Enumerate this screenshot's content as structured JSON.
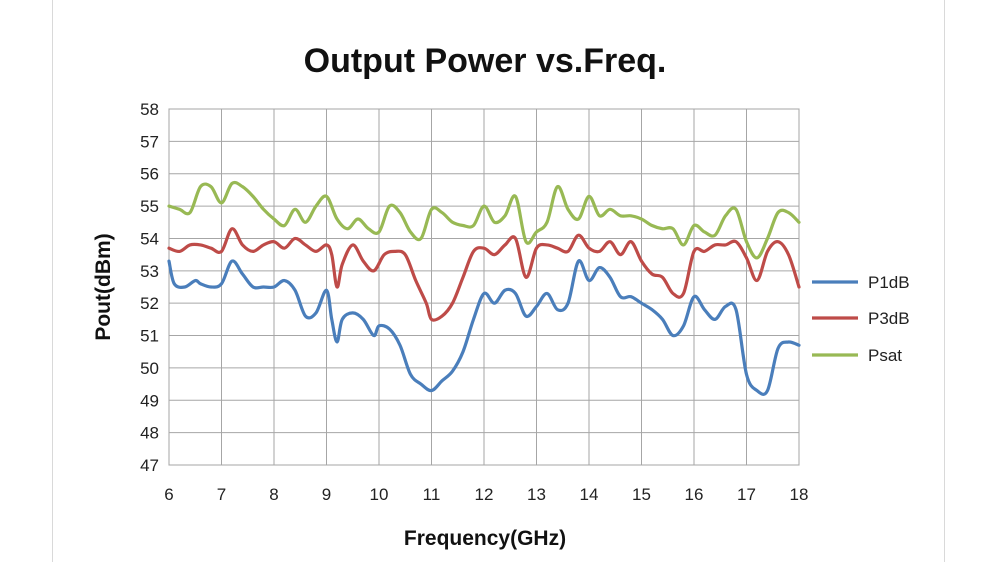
{
  "chart_data": {
    "type": "line",
    "title": "Output Power vs.Freq.",
    "xlabel": "Frequency(GHz)",
    "ylabel": "Pout(dBm)",
    "xlim": [
      6,
      18
    ],
    "ylim": [
      47,
      58
    ],
    "xticks": [
      6,
      7,
      8,
      9,
      10,
      11,
      12,
      13,
      14,
      15,
      16,
      17,
      18
    ],
    "yticks": [
      47,
      48,
      49,
      50,
      51,
      52,
      53,
      54,
      55,
      56,
      57,
      58
    ],
    "grid": true,
    "legend_position": "right",
    "series": [
      {
        "name": "P1dB",
        "color": "#4a7ebb",
        "x": [
          6.0,
          6.1,
          6.3,
          6.5,
          6.6,
          6.8,
          7.0,
          7.2,
          7.4,
          7.6,
          7.8,
          8.0,
          8.2,
          8.4,
          8.6,
          8.8,
          9.0,
          9.1,
          9.2,
          9.3,
          9.5,
          9.7,
          9.9,
          10.0,
          10.2,
          10.4,
          10.6,
          10.8,
          11.0,
          11.2,
          11.4,
          11.6,
          11.8,
          12.0,
          12.2,
          12.4,
          12.6,
          12.8,
          13.0,
          13.2,
          13.4,
          13.6,
          13.8,
          14.0,
          14.2,
          14.4,
          14.6,
          14.8,
          15.0,
          15.2,
          15.4,
          15.6,
          15.8,
          16.0,
          16.2,
          16.4,
          16.6,
          16.8,
          17.0,
          17.2,
          17.4,
          17.6,
          17.8,
          18.0
        ],
        "values": [
          53.3,
          52.6,
          52.5,
          52.7,
          52.6,
          52.5,
          52.6,
          53.3,
          52.9,
          52.5,
          52.5,
          52.5,
          52.7,
          52.4,
          51.6,
          51.7,
          52.4,
          51.5,
          50.8,
          51.5,
          51.7,
          51.5,
          51.0,
          51.3,
          51.2,
          50.7,
          49.8,
          49.5,
          49.3,
          49.6,
          49.9,
          50.5,
          51.5,
          52.3,
          52.0,
          52.4,
          52.3,
          51.6,
          51.9,
          52.3,
          51.8,
          52.0,
          53.3,
          52.7,
          53.1,
          52.8,
          52.2,
          52.2,
          52.0,
          51.8,
          51.5,
          51.0,
          51.3,
          52.2,
          51.8,
          51.5,
          51.9,
          51.8,
          49.8,
          49.3,
          49.3,
          50.6,
          50.8,
          50.7
        ]
      },
      {
        "name": "P3dB",
        "color": "#be4b48",
        "x": [
          6.0,
          6.2,
          6.4,
          6.6,
          6.8,
          7.0,
          7.2,
          7.4,
          7.6,
          7.8,
          8.0,
          8.2,
          8.4,
          8.6,
          8.8,
          9.0,
          9.1,
          9.2,
          9.3,
          9.5,
          9.7,
          9.9,
          10.1,
          10.3,
          10.5,
          10.7,
          10.9,
          11.0,
          11.2,
          11.4,
          11.6,
          11.8,
          12.0,
          12.2,
          12.4,
          12.6,
          12.8,
          13.0,
          13.2,
          13.4,
          13.6,
          13.8,
          14.0,
          14.2,
          14.4,
          14.6,
          14.8,
          15.0,
          15.2,
          15.4,
          15.6,
          15.8,
          16.0,
          16.2,
          16.4,
          16.6,
          16.8,
          17.0,
          17.2,
          17.4,
          17.6,
          17.8,
          18.0
        ],
        "values": [
          53.7,
          53.6,
          53.8,
          53.8,
          53.7,
          53.6,
          54.3,
          53.8,
          53.6,
          53.8,
          53.9,
          53.7,
          54.0,
          53.8,
          53.6,
          53.8,
          53.5,
          52.5,
          53.2,
          53.8,
          53.3,
          53.0,
          53.5,
          53.6,
          53.5,
          52.7,
          52.0,
          51.5,
          51.6,
          52.0,
          52.8,
          53.6,
          53.7,
          53.5,
          53.8,
          54.0,
          52.8,
          53.7,
          53.8,
          53.7,
          53.6,
          54.1,
          53.7,
          53.6,
          53.9,
          53.5,
          53.9,
          53.3,
          52.9,
          52.8,
          52.3,
          52.3,
          53.6,
          53.6,
          53.8,
          53.8,
          53.9,
          53.4,
          52.7,
          53.6,
          53.9,
          53.5,
          52.5
        ]
      },
      {
        "name": "Psat",
        "color": "#98b954",
        "x": [
          6.0,
          6.2,
          6.4,
          6.6,
          6.8,
          7.0,
          7.2,
          7.4,
          7.6,
          7.8,
          8.0,
          8.2,
          8.4,
          8.6,
          8.8,
          9.0,
          9.2,
          9.4,
          9.6,
          9.8,
          10.0,
          10.2,
          10.4,
          10.6,
          10.8,
          11.0,
          11.2,
          11.4,
          11.6,
          11.8,
          12.0,
          12.2,
          12.4,
          12.6,
          12.8,
          13.0,
          13.2,
          13.4,
          13.6,
          13.8,
          14.0,
          14.2,
          14.4,
          14.6,
          14.8,
          15.0,
          15.2,
          15.4,
          15.6,
          15.8,
          16.0,
          16.2,
          16.4,
          16.6,
          16.8,
          17.0,
          17.2,
          17.4,
          17.6,
          17.8,
          18.0
        ],
        "values": [
          55.0,
          54.9,
          54.8,
          55.6,
          55.6,
          55.1,
          55.7,
          55.6,
          55.3,
          54.9,
          54.6,
          54.4,
          54.9,
          54.5,
          55.0,
          55.3,
          54.6,
          54.3,
          54.6,
          54.3,
          54.2,
          55.0,
          54.8,
          54.2,
          54.0,
          54.9,
          54.8,
          54.5,
          54.4,
          54.4,
          55.0,
          54.5,
          54.7,
          55.3,
          53.9,
          54.2,
          54.5,
          55.6,
          54.9,
          54.6,
          55.3,
          54.7,
          54.9,
          54.7,
          54.7,
          54.6,
          54.4,
          54.3,
          54.3,
          53.8,
          54.4,
          54.2,
          54.1,
          54.7,
          54.9,
          53.9,
          53.4,
          54.0,
          54.8,
          54.8,
          54.5
        ]
      }
    ]
  }
}
